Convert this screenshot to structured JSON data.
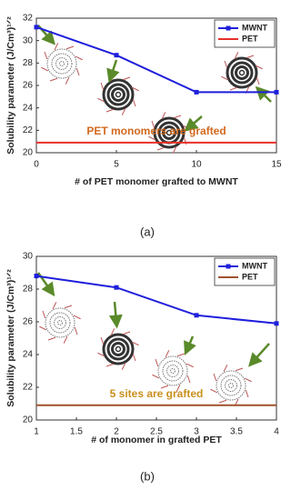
{
  "chart_data": [
    {
      "type": "line",
      "caption": "(a)",
      "x": [
        0,
        5,
        10,
        15
      ],
      "series": [
        {
          "name": "MWNT",
          "color": "#1f1fdc",
          "marker": "square",
          "values": [
            31.2,
            28.7,
            25.4,
            25.4
          ]
        },
        {
          "name": "PET",
          "color": "#e8302a",
          "values": [
            20.9,
            20.9,
            20.9,
            20.9
          ]
        }
      ],
      "xlim": [
        0,
        15
      ],
      "ylim": [
        20,
        32
      ],
      "xticks": [
        0,
        5,
        10,
        15
      ],
      "yticks": [
        20,
        22,
        24,
        26,
        28,
        30,
        32
      ],
      "xlabel": "# of PET monomer grafted to MWNT",
      "ylabel": "Solubility parameter (J/Cm³)¹ᐟ²",
      "annotation": {
        "text": "PET monomers are grafted",
        "color": "#d2691e"
      },
      "legend": "upper right"
    },
    {
      "type": "line",
      "caption": "(b)",
      "x": [
        1,
        2,
        3,
        4
      ],
      "series": [
        {
          "name": "MWNT",
          "color": "#1f1fdc",
          "marker": "square",
          "values": [
            28.8,
            28.1,
            26.4,
            25.9
          ]
        },
        {
          "name": "PET",
          "color": "#a0522d",
          "values": [
            20.9,
            20.9,
            20.9,
            20.9
          ]
        }
      ],
      "xlim": [
        1,
        4
      ],
      "ylim": [
        20,
        30
      ],
      "xticks": [
        1,
        1.5,
        2,
        2.5,
        3,
        3.5,
        4
      ],
      "yticks": [
        20,
        22,
        24,
        26,
        28,
        30
      ],
      "xlabel": "# of monomer in grafted PET",
      "ylabel": "Solubility parameter (J/Cm³)¹ᐟ²",
      "annotation": {
        "text": "5 sites are grafted",
        "color": "#c8901e"
      },
      "legend": "upper right"
    }
  ]
}
